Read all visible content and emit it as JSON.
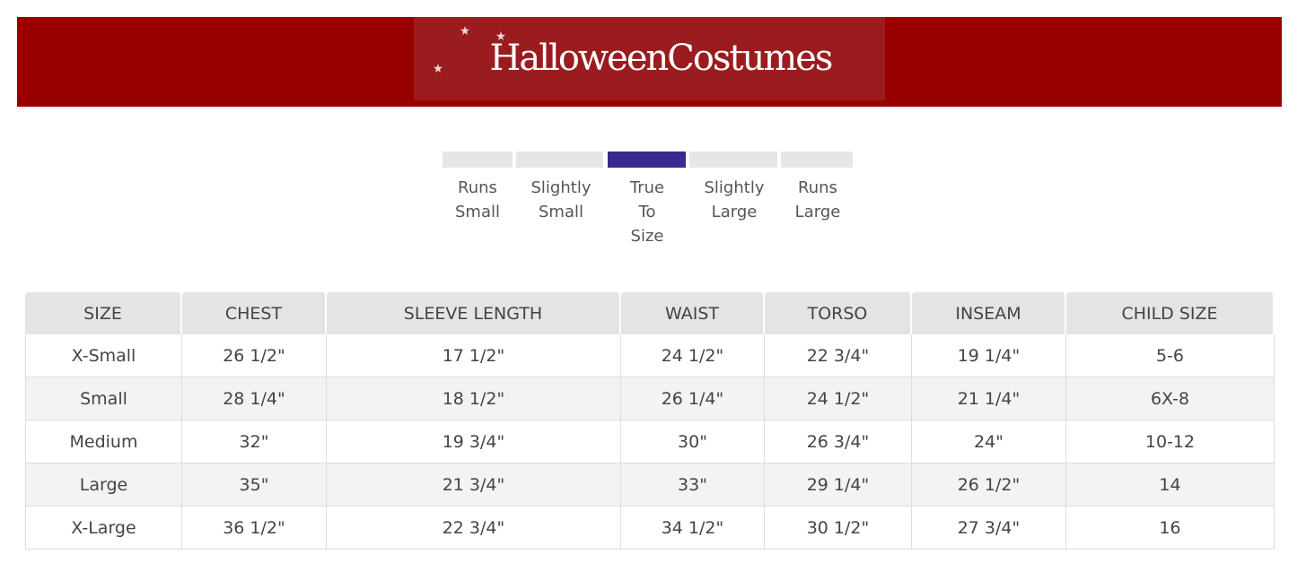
{
  "logo": {
    "text": "HalloweenCostumes",
    "bg": "#990000"
  },
  "fit": {
    "options": [
      "Runs Small",
      "Slightly Small",
      "True To Size",
      "Slightly Large",
      "Runs Large"
    ],
    "selected": "True To Size",
    "accent": "#3a2a8f"
  },
  "table": {
    "headers": [
      "SIZE",
      "CHEST",
      "SLEEVE LENGTH",
      "WAIST",
      "TORSO",
      "INSEAM",
      "CHILD SIZE"
    ],
    "rows": [
      [
        "X-Small",
        "26 1/2\"",
        "17 1/2\"",
        "24 1/2\"",
        "22 3/4\"",
        "19 1/4\"",
        "5-6"
      ],
      [
        "Small",
        "28 1/4\"",
        "18 1/2\"",
        "26 1/4\"",
        "24 1/2\"",
        "21 1/4\"",
        "6X-8"
      ],
      [
        "Medium",
        "32\"",
        "19 3/4\"",
        "30\"",
        "26 3/4\"",
        "24\"",
        "10-12"
      ],
      [
        "Large",
        "35\"",
        "21 3/4\"",
        "33\"",
        "29 1/4\"",
        "26 1/2\"",
        "14"
      ],
      [
        "X-Large",
        "36 1/2\"",
        "22 3/4\"",
        "34 1/2\"",
        "30 1/2\"",
        "27 3/4\"",
        "16"
      ]
    ]
  }
}
